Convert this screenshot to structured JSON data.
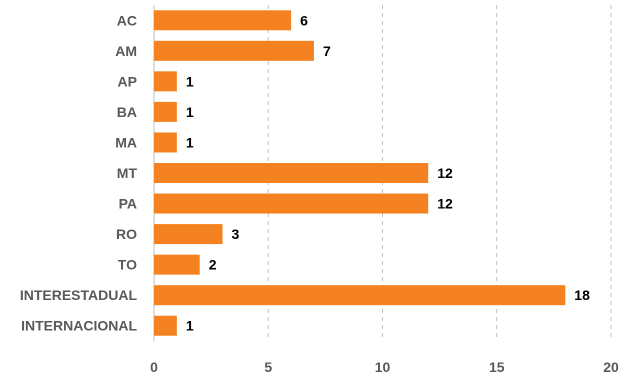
{
  "chart_data": {
    "type": "bar",
    "orientation": "horizontal",
    "categories": [
      "AC",
      "AM",
      "AP",
      "BA",
      "MA",
      "MT",
      "PA",
      "RO",
      "TO",
      "INTERESTADUAL",
      "INTERNACIONAL"
    ],
    "values": [
      6,
      7,
      1,
      1,
      1,
      12,
      12,
      3,
      2,
      18,
      1
    ],
    "xlim": [
      0,
      20
    ],
    "xticks": [
      0,
      5,
      10,
      15,
      20
    ],
    "grid": true,
    "legend": "none",
    "bar_color": "#f58220",
    "title": "",
    "xlabel": "",
    "ylabel": ""
  }
}
